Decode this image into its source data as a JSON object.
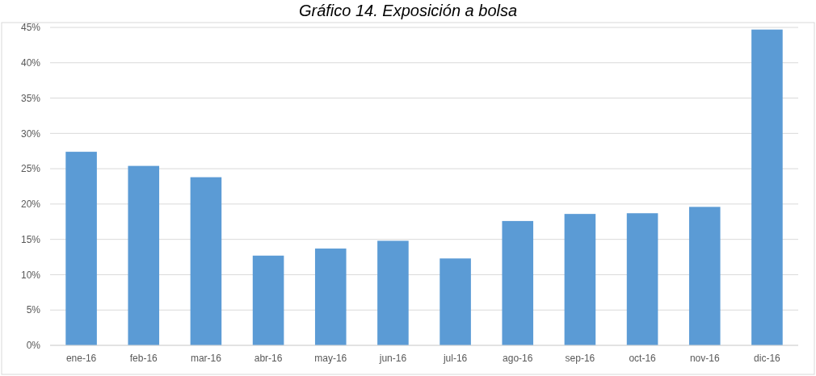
{
  "chart_data": {
    "type": "bar",
    "title": "Gráfico 14. Exposición a bolsa",
    "categories": [
      "ene-16",
      "feb-16",
      "mar-16",
      "abr-16",
      "may-16",
      "jun-16",
      "jul-16",
      "ago-16",
      "sep-16",
      "oct-16",
      "nov-16",
      "dic-16"
    ],
    "values": [
      27.4,
      25.4,
      23.8,
      12.7,
      13.7,
      14.8,
      12.3,
      17.6,
      18.6,
      18.7,
      19.6,
      44.7
    ],
    "color": "#5b9bd5",
    "ylim": [
      0,
      45
    ],
    "yticks": [
      {
        "value": 0,
        "label": "0%"
      },
      {
        "value": 5,
        "label": "5%"
      },
      {
        "value": 10,
        "label": "10%"
      },
      {
        "value": 15,
        "label": "15%"
      },
      {
        "value": 20,
        "label": "20%"
      },
      {
        "value": 25,
        "label": "25%"
      },
      {
        "value": 30,
        "label": "30%"
      },
      {
        "value": 35,
        "label": "35%"
      },
      {
        "value": 40,
        "label": "40%"
      },
      {
        "value": 45,
        "label": "45%"
      }
    ],
    "grid": "y"
  }
}
